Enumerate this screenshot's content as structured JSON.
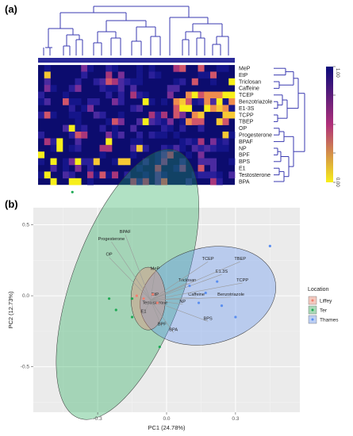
{
  "panel_a": {
    "label": "(a)",
    "row_labels": [
      "MeP",
      "EtP",
      "Triclosan",
      "Caffeine",
      "TCEP",
      "Benzotriazole",
      "E1-3S",
      "TCPP",
      "TBEP",
      "OP",
      "Progesterone",
      "BPAF",
      "NP",
      "BPF",
      "BPS",
      "E1",
      "Testosterone",
      "BPA"
    ],
    "colorbar": {
      "top_label": "1.00",
      "bottom_label": "0.00",
      "top_color": "#0a0a7a",
      "mid_color": "#b0307a",
      "bottom_color": "#f7ef1a"
    }
  },
  "panel_b": {
    "label": "(b)",
    "chart_data": {
      "type": "scatter",
      "xlabel": "PC1 (24.78%)",
      "ylabel": "PC2 (12.73%)",
      "xlim": [
        -0.58,
        0.58
      ],
      "ylim": [
        -0.82,
        0.62
      ],
      "xticks": [
        -0.3,
        0.0,
        0.3
      ],
      "xtick_labels": [
        "-0.3",
        "0.0",
        "0.3"
      ],
      "yticks": [
        -0.5,
        0.0,
        0.5
      ],
      "ytick_labels": [
        "-0.5",
        "0.0",
        "0.5"
      ],
      "grid": true,
      "legend": {
        "title": "Location",
        "position": "right"
      },
      "series": [
        {
          "name": "Liffey",
          "color": "#f08070",
          "points": [
            [
              -0.13,
              0.0
            ],
            [
              -0.1,
              -0.02
            ],
            [
              -0.06,
              0.01
            ],
            [
              -0.04,
              -0.05
            ]
          ]
        },
        {
          "name": "Ter",
          "color": "#1faa55",
          "points": [
            [
              -0.41,
              0.73
            ],
            [
              -0.25,
              -0.02
            ],
            [
              -0.22,
              -0.1
            ],
            [
              -0.15,
              -0.02
            ],
            [
              -0.15,
              -0.15
            ],
            [
              -0.03,
              -0.36
            ]
          ]
        },
        {
          "name": "Thames",
          "color": "#5b8ff0",
          "points": [
            [
              0.45,
              0.35
            ],
            [
              0.22,
              0.1
            ],
            [
              0.17,
              0.02
            ],
            [
              0.1,
              0.07
            ],
            [
              0.24,
              -0.07
            ],
            [
              0.3,
              -0.15
            ],
            [
              0.14,
              -0.05
            ]
          ]
        }
      ],
      "loadings": [
        {
          "label": "BPAF",
          "x": -0.18,
          "y": 0.43
        },
        {
          "label": "Progesterone",
          "x": -0.24,
          "y": 0.38
        },
        {
          "label": "OP",
          "x": -0.25,
          "y": 0.27
        },
        {
          "label": "MeP",
          "x": -0.05,
          "y": 0.17
        },
        {
          "label": "EtP",
          "x": -0.05,
          "y": -0.01
        },
        {
          "label": "Testosterone",
          "x": -0.05,
          "y": -0.07
        },
        {
          "label": "E1",
          "x": -0.1,
          "y": -0.13
        },
        {
          "label": "BPF",
          "x": -0.02,
          "y": -0.22
        },
        {
          "label": "BPA",
          "x": 0.03,
          "y": -0.26
        },
        {
          "label": "NP",
          "x": 0.07,
          "y": -0.06
        },
        {
          "label": "Triclosan",
          "x": 0.09,
          "y": 0.09
        },
        {
          "label": "Caffeine",
          "x": 0.13,
          "y": -0.01
        },
        {
          "label": "TCEP",
          "x": 0.18,
          "y": 0.24
        },
        {
          "label": "E1.3S",
          "x": 0.24,
          "y": 0.15
        },
        {
          "label": "TBEP",
          "x": 0.32,
          "y": 0.24
        },
        {
          "label": "TCPP",
          "x": 0.33,
          "y": 0.09
        },
        {
          "label": "Benzotriazole",
          "x": 0.28,
          "y": -0.01
        },
        {
          "label": "BPS",
          "x": 0.18,
          "y": -0.18
        }
      ]
    }
  }
}
